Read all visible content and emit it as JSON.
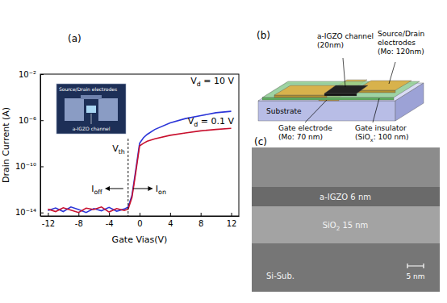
{
  "chart_data": {
    "type": "line",
    "panel_label": "(a)",
    "x_label": "Gate Vias(V)",
    "y_label": "Drain Current (A)",
    "log": "y",
    "xlim": [
      -13,
      13
    ],
    "xticks": [
      -12,
      -8,
      -4,
      0,
      4,
      8,
      12
    ],
    "ylim": [
      5e-15,
      0.01
    ],
    "yticks": [
      {
        "value": 1e-14,
        "label": "10⁻¹⁴"
      },
      {
        "value": 1e-10,
        "label": "10⁻¹⁰"
      },
      {
        "value": 1e-06,
        "label": "10⁻⁶"
      },
      {
        "value": 0.01,
        "label": "10⁻²"
      }
    ],
    "x": [
      -12,
      -11,
      -10,
      -9,
      -8,
      -7,
      -6,
      -5,
      -4,
      -3,
      -2,
      -1.5,
      -1,
      -0.5,
      0,
      0.5,
      1,
      2,
      4,
      6,
      8,
      10,
      12
    ],
    "series": [
      {
        "name": [
          "V",
          "d",
          " = 10 V"
        ],
        "color": "#2b35d8",
        "line_style": "solid",
        "values": [
          1.5e-14,
          2.5e-14,
          1.2e-14,
          3e-14,
          1.8e-14,
          1e-14,
          2.2e-14,
          1.4e-14,
          2.8e-14,
          1.3e-14,
          2e-14,
          3e-14,
          3e-13,
          5e-11,
          1e-08,
          3e-08,
          6e-08,
          1.6e-07,
          6e-07,
          1.4e-06,
          2.5e-06,
          4.5e-06,
          6e-06
        ]
      },
      {
        "name": [
          "V",
          "d",
          " = 0.1 V"
        ],
        "color": "#c8102e",
        "line_style": "solid",
        "values": [
          2e-14,
          1.2e-14,
          2.6e-14,
          1.6e-14,
          1e-14,
          2.4e-14,
          1.8e-14,
          3e-14,
          1.1e-14,
          2.2e-14,
          1.5e-14,
          2e-14,
          2e-13,
          3e-11,
          6e-09,
          1e-08,
          1.5e-08,
          2.5e-08,
          5e-08,
          8e-08,
          1.2e-07,
          1.6e-07,
          2e-07
        ]
      }
    ],
    "vth": {
      "value": -1.5,
      "label": [
        "V",
        "th"
      ]
    },
    "ioff": [
      "I",
      "off"
    ],
    "ion": [
      "I",
      "on"
    ],
    "inset": {
      "electrodes": "Source/Drain electrodes",
      "channel": "a-IGZO channel"
    }
  },
  "schematic": {
    "panel_label": "(b)",
    "labels": [
      {
        "lines": [
          "a-IGZO channel",
          "(20nm)"
        ]
      },
      {
        "lines": [
          "Source/Drain",
          "electrodes",
          "(Mo: 120nm)"
        ]
      },
      {
        "lines": [
          "Substrate"
        ]
      },
      {
        "lines": [
          "Gate electrode",
          "(Mo: 70 nm)"
        ]
      },
      {
        "lines": [
          "Gate insulator",
          [
            "(SiO",
            "x",
            ": 100 nm)"
          ]
        ]
      }
    ]
  },
  "micrograph": {
    "panel_label": "(c)",
    "layers": [
      "a-IGZO 6 nm",
      [
        "SiO",
        "2",
        " 15 nm"
      ],
      "Si-Sub."
    ],
    "scale_bar": "5 nm"
  }
}
